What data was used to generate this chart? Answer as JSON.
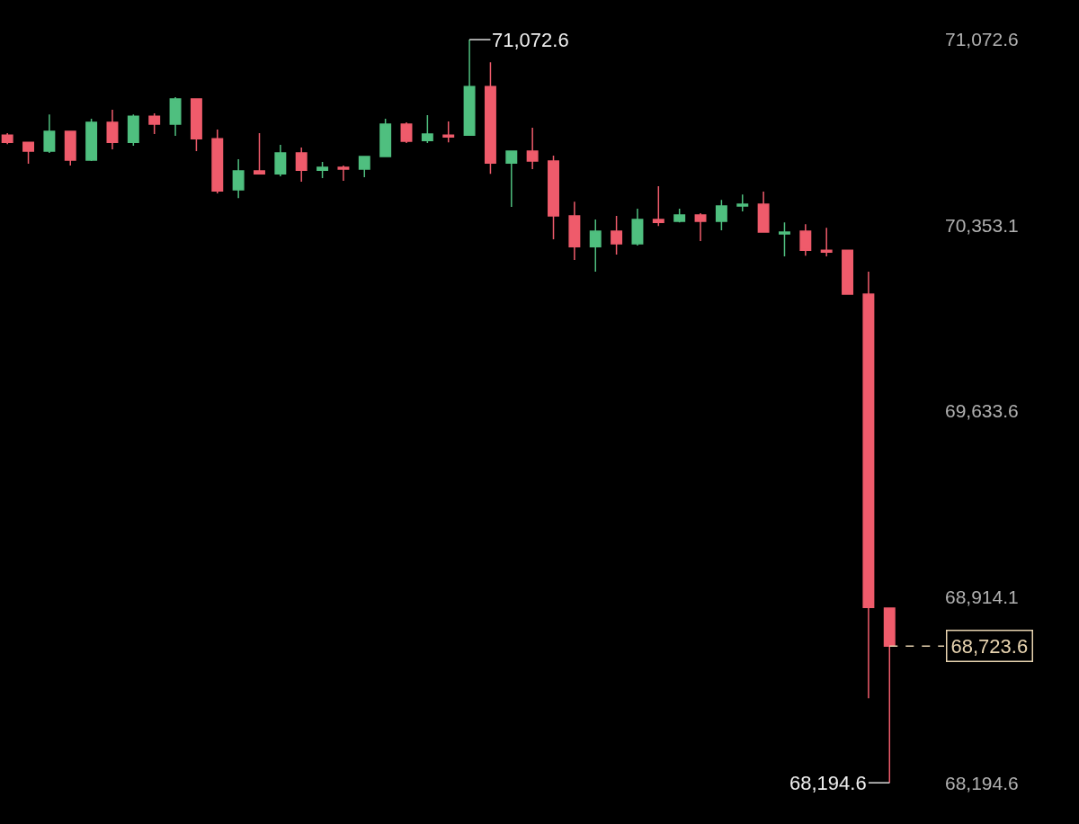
{
  "chart_data": {
    "type": "candlestick",
    "categories": [
      null,
      null,
      null,
      null,
      null,
      null,
      null,
      null,
      null,
      null,
      null,
      null,
      null,
      null,
      null,
      null,
      null,
      null,
      null,
      null,
      null,
      null,
      null,
      null,
      null,
      null,
      null,
      null,
      null,
      null,
      null,
      null,
      null,
      null,
      null,
      null,
      null,
      null,
      null,
      null,
      null,
      null,
      null
    ],
    "ohlc": [
      [
        70703,
        70710,
        70668,
        70675
      ],
      [
        70675,
        70675,
        70592,
        70641
      ],
      [
        70641,
        70783,
        70634,
        70717
      ],
      [
        70717,
        70717,
        70585,
        70606
      ],
      [
        70606,
        70766,
        70602,
        70752
      ],
      [
        70752,
        70801,
        70648,
        70675
      ],
      [
        70675,
        70783,
        70662,
        70776
      ],
      [
        70776,
        70787,
        70707,
        70745
      ],
      [
        70745,
        70850,
        70700,
        70843
      ],
      [
        70843,
        70843,
        70641,
        70689
      ],
      [
        70689,
        70724,
        70477,
        70487
      ],
      [
        70491,
        70609,
        70459,
        70564
      ],
      [
        70564,
        70710,
        70550,
        70553
      ],
      [
        70553,
        70665,
        70543,
        70634
      ],
      [
        70634,
        70655,
        70522,
        70567
      ],
      [
        70567,
        70599,
        70536,
        70578
      ],
      [
        70578,
        70585,
        70526,
        70571
      ],
      [
        70571,
        70620,
        70540,
        70620
      ],
      [
        70620,
        70766,
        70620,
        70745
      ],
      [
        70745,
        70752,
        70672,
        70679
      ],
      [
        70682,
        70780,
        70672,
        70707
      ],
      [
        70703,
        70756,
        70675,
        70696
      ],
      [
        70703,
        71072.6,
        70703,
        70891
      ],
      [
        70891,
        70985,
        70553,
        70595
      ],
      [
        70595,
        70641,
        70425,
        70641
      ],
      [
        70641,
        70731,
        70571,
        70602
      ],
      [
        70602,
        70623,
        70299,
        70390
      ],
      [
        70390,
        70445,
        70219,
        70271
      ],
      [
        70271,
        70376,
        70174,
        70331
      ],
      [
        70331,
        70390,
        70240,
        70282
      ],
      [
        70282,
        70418,
        70275,
        70376
      ],
      [
        70376,
        70505,
        70351,
        70365
      ],
      [
        70369,
        70418,
        70365,
        70393
      ],
      [
        70393,
        70400,
        70292,
        70369
      ],
      [
        70369,
        70452,
        70334,
        70428
      ],
      [
        70428,
        70473,
        70407,
        70435
      ],
      [
        70435,
        70484,
        70327,
        70327
      ],
      [
        70320,
        70365,
        70233,
        70327
      ],
      [
        70331,
        70358,
        70236,
        70257
      ],
      [
        70257,
        70344,
        70233,
        70250
      ],
      [
        70257,
        70257,
        70087,
        70087
      ],
      [
        70087,
        70174,
        68522,
        68874
      ],
      [
        68871,
        68874,
        68194.6,
        68723.6
      ]
    ],
    "colors": [
      "#ef5b6b",
      "#ef5b6b",
      "#4fbf7f",
      "#ef5b6b",
      "#4fbf7f",
      "#ef5b6b",
      "#4fbf7f",
      "#ef5b6b",
      "#4fbf7f",
      "#ef5b6b",
      "#ef5b6b",
      "#4fbf7f",
      "#ef5b6b",
      "#4fbf7f",
      "#ef5b6b",
      "#4fbf7f",
      "#ef5b6b",
      "#4fbf7f",
      "#4fbf7f",
      "#ef5b6b",
      "#4fbf7f",
      "#ef5b6b",
      "#4fbf7f",
      "#ef5b6b",
      "#4fbf7f",
      "#ef5b6b",
      "#ef5b6b",
      "#ef5b6b",
      "#4fbf7f",
      "#ef5b6b",
      "#4fbf7f",
      "#ef5b6b",
      "#4fbf7f",
      "#ef5b6b",
      "#4fbf7f",
      "#4fbf7f",
      "#ef5b6b",
      "#4fbf7f",
      "#ef5b6b",
      "#ef5b6b",
      "#ef5b6b",
      "#ef5b6b",
      "#ef5b6b"
    ],
    "ylim": [
      68035,
      71226
    ],
    "yticks": [
      {
        "value": 71072.6,
        "label": "71,072.6"
      },
      {
        "value": 70353.1,
        "label": "70,353.1"
      },
      {
        "value": 69633.6,
        "label": "69,633.6"
      },
      {
        "value": 68914.1,
        "label": "68,914.1"
      },
      {
        "value": 68194.6,
        "label": "68,194.6"
      }
    ],
    "tick_labels": "y",
    "grid": false,
    "annotations": [
      "71,072.6",
      "68,194.6"
    ],
    "ref_lines": [
      {
        "axis": "y",
        "value": 68723.6,
        "label": "68,723.6",
        "color": "#e8d4b0",
        "line_style": "dashed"
      }
    ]
  }
}
